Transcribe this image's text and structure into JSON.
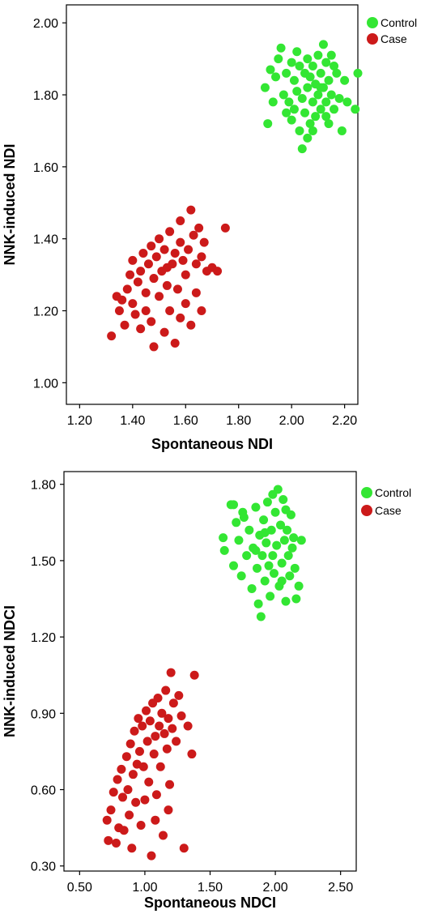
{
  "chart_data": [
    {
      "type": "scatter",
      "title": "",
      "xlabel": "Spontaneous NDI",
      "ylabel": "NNK-induced NDI",
      "xlim": [
        1.15,
        2.25
      ],
      "ylim": [
        0.94,
        2.05
      ],
      "xticks": [
        1.2,
        1.4,
        1.6,
        1.8,
        2.0,
        2.2
      ],
      "yticks": [
        1.0,
        1.2,
        1.4,
        1.6,
        1.8,
        2.0
      ],
      "xtick_labels": [
        "1.20",
        "1.40",
        "1.60",
        "1.80",
        "2.00",
        "2.20"
      ],
      "ytick_labels": [
        "1.00",
        "1.20",
        "1.40",
        "1.60",
        "1.80",
        "2.00"
      ],
      "grid": false,
      "legend_position": "top-right",
      "series": [
        {
          "name": "Control",
          "color": "#33e633",
          "points": [
            [
              1.9,
              1.82
            ],
            [
              1.91,
              1.72
            ],
            [
              1.92,
              1.87
            ],
            [
              1.93,
              1.78
            ],
            [
              1.94,
              1.85
            ],
            [
              1.95,
              1.9
            ],
            [
              1.96,
              1.93
            ],
            [
              1.97,
              1.8
            ],
            [
              1.98,
              1.86
            ],
            [
              1.99,
              1.78
            ],
            [
              2.0,
              1.89
            ],
            [
              2.01,
              1.84
            ],
            [
              2.01,
              1.76
            ],
            [
              2.02,
              1.81
            ],
            [
              2.03,
              1.7
            ],
            [
              2.03,
              1.88
            ],
            [
              2.04,
              1.65
            ],
            [
              2.04,
              1.79
            ],
            [
              2.05,
              1.86
            ],
            [
              2.05,
              1.75
            ],
            [
              2.06,
              1.82
            ],
            [
              2.06,
              1.9
            ],
            [
              2.07,
              1.72
            ],
            [
              2.07,
              1.85
            ],
            [
              2.08,
              1.78
            ],
            [
              2.08,
              1.88
            ],
            [
              2.09,
              1.74
            ],
            [
              2.09,
              1.83
            ],
            [
              2.1,
              1.8
            ],
            [
              2.1,
              1.91
            ],
            [
              2.11,
              1.76
            ],
            [
              2.11,
              1.86
            ],
            [
              2.12,
              1.94
            ],
            [
              2.12,
              1.82
            ],
            [
              2.13,
              1.78
            ],
            [
              2.13,
              1.89
            ],
            [
              2.14,
              1.72
            ],
            [
              2.14,
              1.84
            ],
            [
              2.15,
              1.8
            ],
            [
              2.15,
              1.91
            ],
            [
              2.16,
              1.76
            ],
            [
              2.17,
              1.86
            ],
            [
              2.18,
              1.79
            ],
            [
              2.19,
              1.7
            ],
            [
              2.2,
              1.84
            ],
            [
              2.21,
              1.78
            ],
            [
              2.24,
              1.76
            ],
            [
              2.25,
              1.86
            ],
            [
              2.02,
              1.92
            ],
            [
              2.08,
              1.7
            ],
            [
              2.13,
              1.74
            ],
            [
              2.0,
              1.73
            ],
            [
              1.98,
              1.75
            ],
            [
              2.16,
              1.88
            ],
            [
              2.11,
              1.82
            ],
            [
              2.06,
              1.68
            ]
          ]
        },
        {
          "name": "Case",
          "color": "#cc1a1a",
          "points": [
            [
              1.32,
              1.13
            ],
            [
              1.34,
              1.24
            ],
            [
              1.35,
              1.2
            ],
            [
              1.36,
              1.23
            ],
            [
              1.37,
              1.16
            ],
            [
              1.38,
              1.26
            ],
            [
              1.39,
              1.3
            ],
            [
              1.4,
              1.22
            ],
            [
              1.4,
              1.34
            ],
            [
              1.41,
              1.19
            ],
            [
              1.42,
              1.28
            ],
            [
              1.43,
              1.31
            ],
            [
              1.43,
              1.15
            ],
            [
              1.44,
              1.36
            ],
            [
              1.45,
              1.25
            ],
            [
              1.45,
              1.2
            ],
            [
              1.46,
              1.33
            ],
            [
              1.47,
              1.38
            ],
            [
              1.47,
              1.17
            ],
            [
              1.48,
              1.1
            ],
            [
              1.48,
              1.29
            ],
            [
              1.49,
              1.35
            ],
            [
              1.5,
              1.24
            ],
            [
              1.5,
              1.4
            ],
            [
              1.51,
              1.31
            ],
            [
              1.52,
              1.14
            ],
            [
              1.52,
              1.37
            ],
            [
              1.53,
              1.27
            ],
            [
              1.54,
              1.42
            ],
            [
              1.54,
              1.2
            ],
            [
              1.55,
              1.33
            ],
            [
              1.56,
              1.36
            ],
            [
              1.56,
              1.11
            ],
            [
              1.57,
              1.26
            ],
            [
              1.58,
              1.39
            ],
            [
              1.58,
              1.18
            ],
            [
              1.59,
              1.34
            ],
            [
              1.6,
              1.3
            ],
            [
              1.6,
              1.22
            ],
            [
              1.61,
              1.37
            ],
            [
              1.62,
              1.48
            ],
            [
              1.62,
              1.16
            ],
            [
              1.63,
              1.41
            ],
            [
              1.64,
              1.33
            ],
            [
              1.64,
              1.25
            ],
            [
              1.65,
              1.43
            ],
            [
              1.66,
              1.35
            ],
            [
              1.66,
              1.2
            ],
            [
              1.67,
              1.39
            ],
            [
              1.68,
              1.31
            ],
            [
              1.7,
              1.32
            ],
            [
              1.72,
              1.31
            ],
            [
              1.75,
              1.43
            ],
            [
              1.58,
              1.45
            ],
            [
              1.53,
              1.32
            ]
          ]
        }
      ]
    },
    {
      "type": "scatter",
      "title": "",
      "xlabel": "Spontaneous NDCI",
      "ylabel": "NNK-induced NDCI",
      "xlim": [
        0.38,
        2.62
      ],
      "ylim": [
        0.28,
        1.85
      ],
      "xticks": [
        0.5,
        1.0,
        1.5,
        2.0,
        2.5
      ],
      "yticks": [
        0.3,
        0.6,
        0.9,
        1.2,
        1.5,
        1.8
      ],
      "xtick_labels": [
        "0.50",
        "1.00",
        "1.50",
        "2.00",
        "2.50"
      ],
      "ytick_labels": [
        "0.30",
        "0.60",
        "0.90",
        "1.20",
        "1.50",
        "1.80"
      ],
      "grid": false,
      "legend_position": "top-right",
      "series": [
        {
          "name": "Control",
          "color": "#33e633",
          "points": [
            [
              1.6,
              1.59
            ],
            [
              1.61,
              1.54
            ],
            [
              1.66,
              1.72
            ],
            [
              1.68,
              1.48
            ],
            [
              1.7,
              1.65
            ],
            [
              1.72,
              1.58
            ],
            [
              1.74,
              1.44
            ],
            [
              1.75,
              1.69
            ],
            [
              1.78,
              1.52
            ],
            [
              1.8,
              1.62
            ],
            [
              1.82,
              1.39
            ],
            [
              1.83,
              1.55
            ],
            [
              1.85,
              1.71
            ],
            [
              1.86,
              1.47
            ],
            [
              1.87,
              1.33
            ],
            [
              1.88,
              1.6
            ],
            [
              1.89,
              1.28
            ],
            [
              1.9,
              1.52
            ],
            [
              1.91,
              1.66
            ],
            [
              1.92,
              1.42
            ],
            [
              1.93,
              1.57
            ],
            [
              1.94,
              1.73
            ],
            [
              1.95,
              1.48
            ],
            [
              1.96,
              1.36
            ],
            [
              1.97,
              1.62
            ],
            [
              1.98,
              1.52
            ],
            [
              1.99,
              1.45
            ],
            [
              2.0,
              1.69
            ],
            [
              2.01,
              1.56
            ],
            [
              2.02,
              1.78
            ],
            [
              2.03,
              1.4
            ],
            [
              2.04,
              1.64
            ],
            [
              2.05,
              1.49
            ],
            [
              2.06,
              1.74
            ],
            [
              2.07,
              1.58
            ],
            [
              2.08,
              1.34
            ],
            [
              2.09,
              1.62
            ],
            [
              2.1,
              1.52
            ],
            [
              2.11,
              1.44
            ],
            [
              2.12,
              1.68
            ],
            [
              2.13,
              1.55
            ],
            [
              2.14,
              1.59
            ],
            [
              2.15,
              1.47
            ],
            [
              2.16,
              1.35
            ],
            [
              2.18,
              1.4
            ],
            [
              2.2,
              1.58
            ],
            [
              1.98,
              1.76
            ],
            [
              1.92,
              1.61
            ],
            [
              1.85,
              1.54
            ],
            [
              2.05,
              1.42
            ],
            [
              1.76,
              1.67
            ],
            [
              1.68,
              1.72
            ],
            [
              2.08,
              1.7
            ]
          ]
        },
        {
          "name": "Case",
          "color": "#cc1a1a",
          "points": [
            [
              0.71,
              0.48
            ],
            [
              0.72,
              0.4
            ],
            [
              0.74,
              0.52
            ],
            [
              0.76,
              0.59
            ],
            [
              0.78,
              0.39
            ],
            [
              0.79,
              0.64
            ],
            [
              0.8,
              0.45
            ],
            [
              0.82,
              0.68
            ],
            [
              0.83,
              0.57
            ],
            [
              0.84,
              0.44
            ],
            [
              0.86,
              0.73
            ],
            [
              0.87,
              0.6
            ],
            [
              0.88,
              0.5
            ],
            [
              0.89,
              0.78
            ],
            [
              0.9,
              0.37
            ],
            [
              0.91,
              0.66
            ],
            [
              0.92,
              0.83
            ],
            [
              0.93,
              0.55
            ],
            [
              0.94,
              0.7
            ],
            [
              0.95,
              0.88
            ],
            [
              0.96,
              0.75
            ],
            [
              0.97,
              0.46
            ],
            [
              0.98,
              0.85
            ],
            [
              0.99,
              0.69
            ],
            [
              1.0,
              0.56
            ],
            [
              1.01,
              0.91
            ],
            [
              1.02,
              0.79
            ],
            [
              1.03,
              0.63
            ],
            [
              1.04,
              0.87
            ],
            [
              1.05,
              0.34
            ],
            [
              1.06,
              0.94
            ],
            [
              1.07,
              0.74
            ],
            [
              1.08,
              0.81
            ],
            [
              1.09,
              0.58
            ],
            [
              1.1,
              0.96
            ],
            [
              1.11,
              0.85
            ],
            [
              1.12,
              0.69
            ],
            [
              1.13,
              0.9
            ],
            [
              1.14,
              0.42
            ],
            [
              1.15,
              0.82
            ],
            [
              1.16,
              0.99
            ],
            [
              1.17,
              0.76
            ],
            [
              1.18,
              0.88
            ],
            [
              1.19,
              0.62
            ],
            [
              1.2,
              1.06
            ],
            [
              1.21,
              0.84
            ],
            [
              1.22,
              0.94
            ],
            [
              1.24,
              0.79
            ],
            [
              1.26,
              0.97
            ],
            [
              1.28,
              0.89
            ],
            [
              1.3,
              0.37
            ],
            [
              1.33,
              0.85
            ],
            [
              1.36,
              0.74
            ],
            [
              1.38,
              1.05
            ],
            [
              1.08,
              0.48
            ],
            [
              1.18,
              0.52
            ]
          ]
        }
      ]
    }
  ]
}
